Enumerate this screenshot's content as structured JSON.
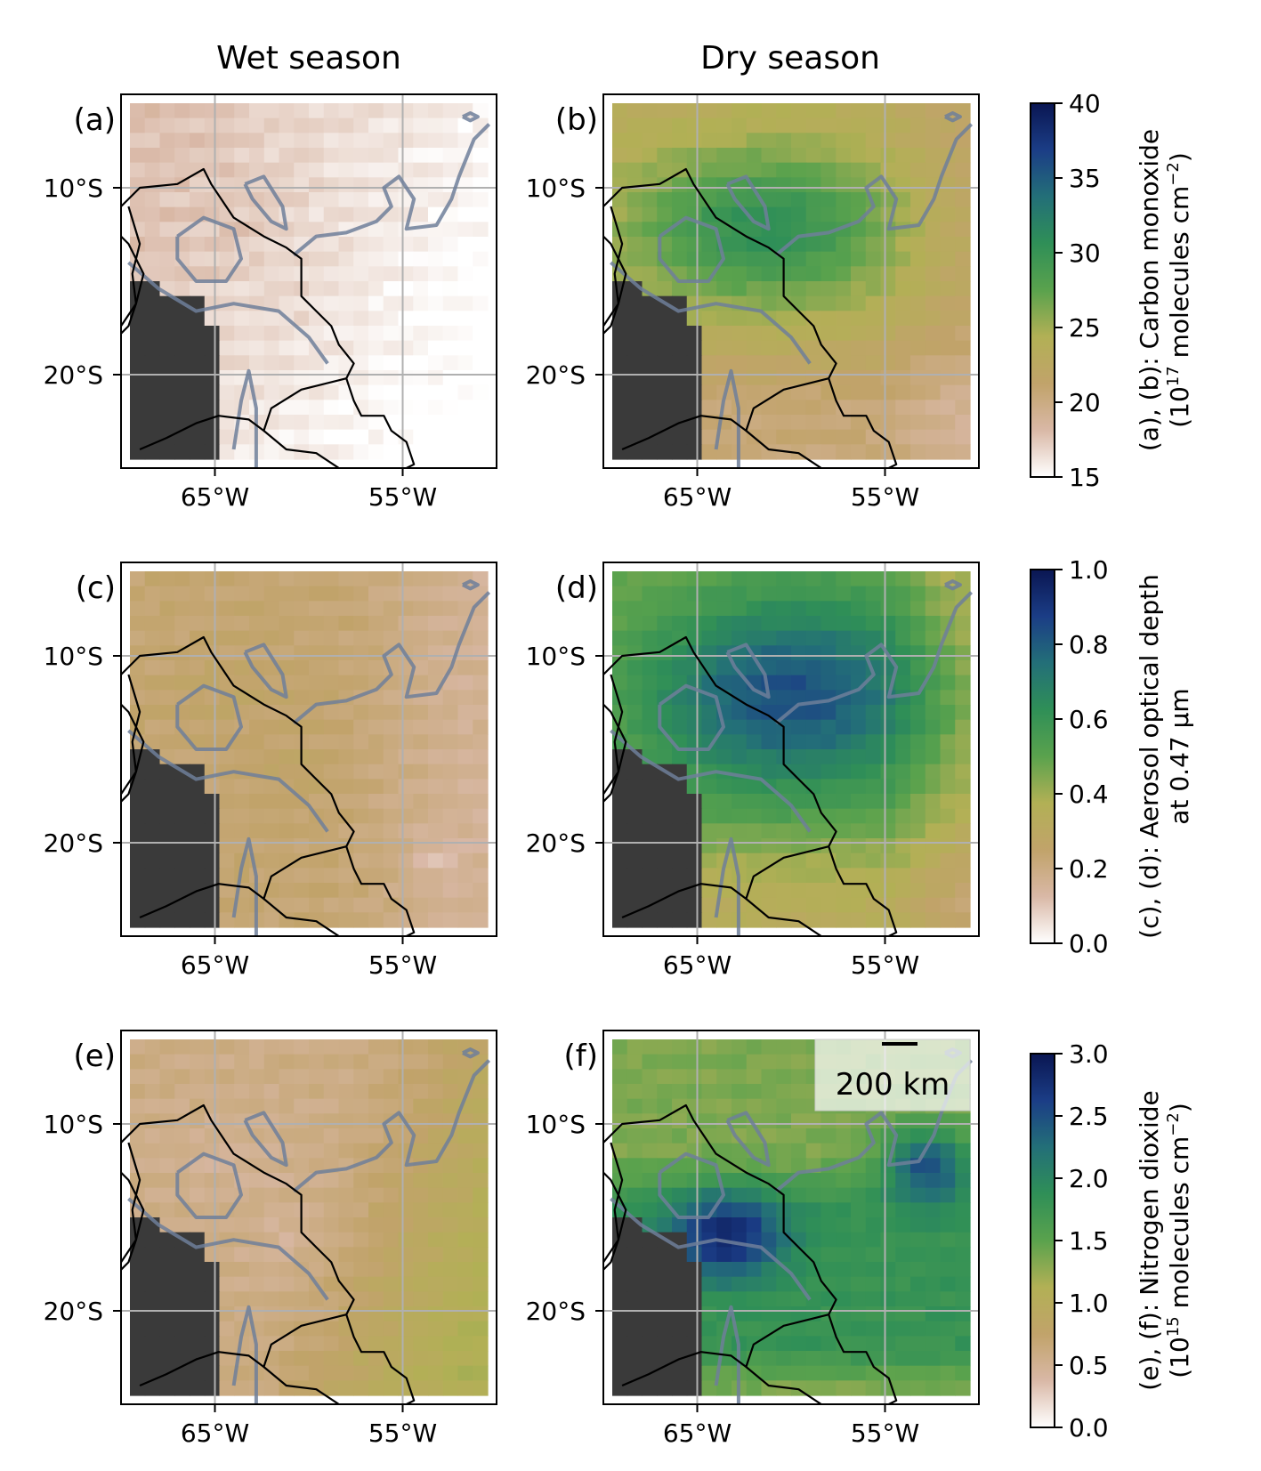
{
  "figure": {
    "col_titles": [
      "Wet season",
      "Dry season"
    ],
    "panel_labels": [
      "(a)",
      "(b)",
      "(c)",
      "(d)",
      "(e)",
      "(f)"
    ],
    "x_ticks": [
      "65°W",
      "55°W"
    ],
    "y_ticks": [
      "10°S",
      "20°S"
    ],
    "scale_bar": "200 km"
  },
  "chart_data": [
    {
      "type": "heatmap",
      "rows": [
        "Carbon monoxide",
        "Aerosol optical depth",
        "Nitrogen dioxide"
      ],
      "columns": [
        "Wet season",
        "Dry season"
      ],
      "x_axis": {
        "range": [
          -70.5,
          -50.5
        ],
        "ticks": [
          -65,
          -55
        ],
        "tick_labels": [
          "65°W",
          "55°W"
        ]
      },
      "y_axis": {
        "range": [
          -24.5,
          -4.5
        ],
        "ticks": [
          -10,
          -20
        ],
        "tick_labels": [
          "10°S",
          "20°S"
        ]
      },
      "grid": true
    }
  ],
  "colorbars": [
    {
      "id": "co",
      "label1": "(a), (b): Carbon monoxide",
      "label2": "(10",
      "sup": "17",
      "label3": " molecules cm",
      "sup2": "−2",
      "label4": ")",
      "vmin": 15,
      "vmax": 40,
      "ticks": [
        15,
        20,
        25,
        30,
        35,
        40
      ],
      "tick_labels": [
        "15",
        "20",
        "25",
        "30",
        "35",
        "40"
      ]
    },
    {
      "id": "aod",
      "label1": "(c), (d): Aerosol optical depth",
      "label2": "at 0.47 μm",
      "vmin": 0.0,
      "vmax": 1.0,
      "ticks": [
        0.0,
        0.2,
        0.4,
        0.6,
        0.8,
        1.0
      ],
      "tick_labels": [
        "0.0",
        "0.2",
        "0.4",
        "0.6",
        "0.8",
        "1.0"
      ]
    },
    {
      "id": "no2",
      "label1": "(e), (f): Nitrogen dioxide",
      "label2": "(10",
      "sup": "15",
      "label3": " molecules cm",
      "sup2": "−2",
      "label4": ")",
      "vmin": 0.0,
      "vmax": 3.0,
      "ticks": [
        0.0,
        0.5,
        1.0,
        1.5,
        2.0,
        2.5,
        3.0
      ],
      "tick_labels": [
        "0.0",
        "0.5",
        "1.0",
        "1.5",
        "2.0",
        "2.5",
        "3.0"
      ]
    }
  ],
  "colormap": [
    "#ffffff",
    "#d9b8a6",
    "#c1a36a",
    "#b2b055",
    "#5aa24d",
    "#2f8f57",
    "#236f78",
    "#1b3d86",
    "#0a1652"
  ]
}
